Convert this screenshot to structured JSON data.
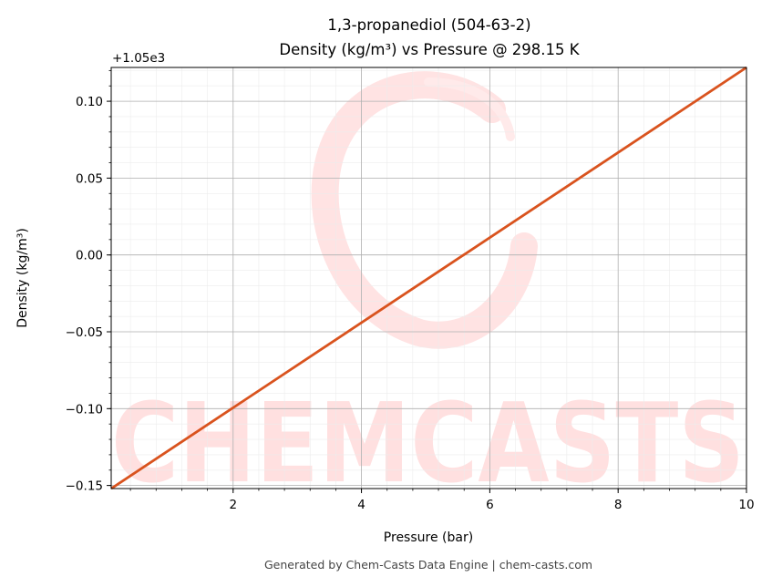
{
  "chart_data": {
    "type": "line",
    "title": "1,3-propanediol (504-63-2)",
    "subtitle": "Density (kg/m³) vs Pressure @ 298.15 K",
    "xlabel": "Pressure (bar)",
    "ylabel": "Density (kg/m³)",
    "offset_label": "+1.05e3",
    "xlim": [
      0.1,
      10
    ],
    "ylim": [
      -0.152,
      0.122
    ],
    "x_ticks": [
      2,
      4,
      6,
      8,
      10
    ],
    "x_tick_labels": [
      "2",
      "4",
      "6",
      "8",
      "10"
    ],
    "y_ticks": [
      0.1,
      0.05,
      0.0,
      -0.05,
      -0.1,
      -0.15
    ],
    "y_tick_labels": [
      "0.10",
      "0.05",
      "0.00",
      "−0.05",
      "−0.10",
      "−0.15"
    ],
    "grid": true,
    "line_color": "#d9531e",
    "series": [
      {
        "x": [
          0.1,
          10
        ],
        "y": [
          -0.152,
          0.122
        ]
      }
    ]
  },
  "watermark": {
    "text": "CHEMCASTS",
    "color": "#ffe0e0"
  },
  "footer": "Generated by Chem-Casts Data Engine | chem-casts.com"
}
